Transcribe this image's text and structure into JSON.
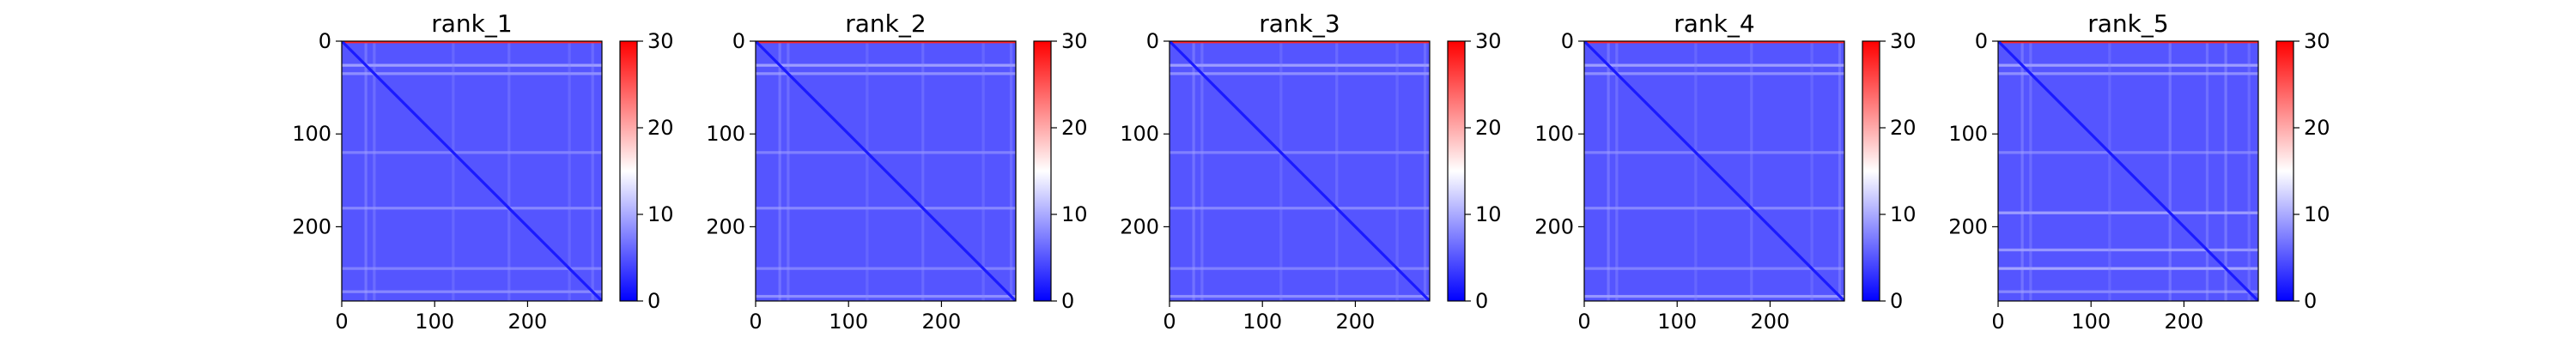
{
  "colorscale": {
    "low_color": "#0000ff",
    "mid_color": "#ffffff",
    "high_color": "#ff0000",
    "range": [
      0,
      30
    ],
    "ticks": [
      0,
      10,
      20,
      30
    ]
  },
  "chart_data": [
    {
      "type": "heatmap",
      "title": "rank_1",
      "xlim": [
        0,
        280
      ],
      "ylim": [
        280,
        0
      ],
      "x_ticks": [
        0,
        100,
        200
      ],
      "y_ticks": [
        0,
        100,
        200
      ],
      "size": 280,
      "diagonal_value": 1.5,
      "background_value": 5,
      "top_edge_value": 28,
      "bright_bands": [
        [
          26,
          10
        ],
        [
          35,
          9
        ],
        [
          120,
          8
        ],
        [
          180,
          8.5
        ],
        [
          245,
          8
        ],
        [
          270,
          8.5
        ]
      ]
    },
    {
      "type": "heatmap",
      "title": "rank_2",
      "xlim": [
        0,
        280
      ],
      "ylim": [
        280,
        0
      ],
      "x_ticks": [
        0,
        100,
        200
      ],
      "y_ticks": [
        0,
        100,
        200
      ],
      "size": 280,
      "diagonal_value": 1.5,
      "background_value": 5,
      "top_edge_value": 28,
      "bright_bands": [
        [
          26,
          10
        ],
        [
          35,
          9
        ],
        [
          120,
          8
        ],
        [
          180,
          8.5
        ],
        [
          245,
          8
        ],
        [
          275,
          9
        ]
      ]
    },
    {
      "type": "heatmap",
      "title": "rank_3",
      "xlim": [
        0,
        280
      ],
      "ylim": [
        280,
        0
      ],
      "x_ticks": [
        0,
        100,
        200
      ],
      "y_ticks": [
        0,
        100,
        200
      ],
      "size": 280,
      "diagonal_value": 1.5,
      "background_value": 5,
      "top_edge_value": 28,
      "bright_bands": [
        [
          26,
          10
        ],
        [
          35,
          9
        ],
        [
          120,
          8
        ],
        [
          180,
          8.5
        ],
        [
          245,
          8
        ],
        [
          275,
          9
        ]
      ]
    },
    {
      "type": "heatmap",
      "title": "rank_4",
      "xlim": [
        0,
        280
      ],
      "ylim": [
        280,
        0
      ],
      "x_ticks": [
        0,
        100,
        200
      ],
      "y_ticks": [
        0,
        100,
        200
      ],
      "size": 280,
      "diagonal_value": 1.5,
      "background_value": 5,
      "top_edge_value": 28,
      "bright_bands": [
        [
          26,
          10
        ],
        [
          35,
          9
        ],
        [
          120,
          8
        ],
        [
          180,
          8.5
        ],
        [
          245,
          8
        ],
        [
          275,
          9.5
        ]
      ]
    },
    {
      "type": "heatmap",
      "title": "rank_5",
      "xlim": [
        0,
        280
      ],
      "ylim": [
        280,
        0
      ],
      "x_ticks": [
        0,
        100,
        200
      ],
      "y_ticks": [
        0,
        100,
        200
      ],
      "size": 280,
      "diagonal_value": 1.5,
      "background_value": 5,
      "top_edge_value": 28,
      "bright_bands": [
        [
          26,
          10
        ],
        [
          35,
          9
        ],
        [
          120,
          8
        ],
        [
          185,
          10
        ],
        [
          225,
          9.5
        ],
        [
          245,
          10.5
        ],
        [
          270,
          8.5
        ]
      ]
    }
  ]
}
